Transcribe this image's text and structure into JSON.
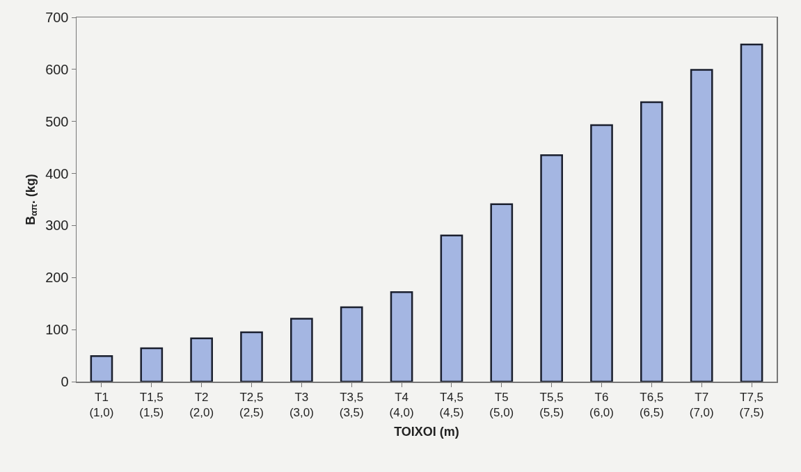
{
  "chart_data": {
    "type": "bar",
    "categories": [
      "T1\n(1,0)",
      "T1,5\n(1,5)",
      "T2\n(2,0)",
      "T2,5\n(2,5)",
      "T3\n(3,0)",
      "T3,5\n(3,5)",
      "T4\n(4,0)",
      "T4,5\n(4,5)",
      "T5\n(5,0)",
      "T5,5\n(5,5)",
      "T6\n(6,0)",
      "T6,5\n(6,5)",
      "T7\n(7,0)",
      "T7,5\n(7,5)"
    ],
    "values": [
      49,
      64,
      83,
      95,
      121,
      143,
      172,
      281,
      341,
      435,
      493,
      537,
      599,
      648
    ],
    "color": "#a4b6e2",
    "xlabel": "ΤΟΙΧΟΙ (m)",
    "ylabel": "B$_{απ}$. (kg)",
    "ylim": [
      0,
      700
    ],
    "yticks": [
      0,
      100,
      200,
      300,
      400,
      500,
      600,
      700
    ]
  }
}
